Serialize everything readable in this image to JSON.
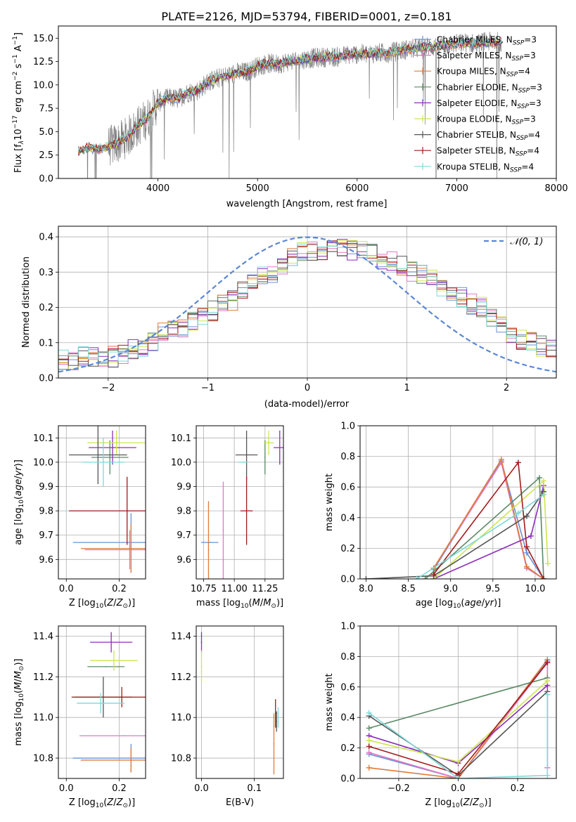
{
  "figure_title": "PLATE=2126, MJD=53794, FIBERID=0001, z=0.181",
  "colors": {
    "Chabrier MILES": "#6a8fd8",
    "Salpeter MILES": "#e377c2",
    "Kroupa MILES": "#e07b39",
    "Chabrier ELODIE": "#5b8a66",
    "Salpeter ELODIE": "#8b2fb8",
    "Kroupa ELODIE": "#cce64d",
    "Chabrier STELIB": "#555555",
    "Salpeter STELIB": "#a31a1a",
    "Kroupa STELIB": "#7fd8d8",
    "gaussian": "#5b87d6",
    "spectrum": "#808080"
  },
  "chart_data": [
    {
      "id": "spectrum",
      "type": "line",
      "title": "PLATE=2126, MJD=53794, FIBERID=0001, z=0.181",
      "xlabel": "wavelength [Angstrom, rest frame]",
      "ylabel": "Flux [f_λ 10^-17 erg cm^-2 s^-1 A^-1]",
      "xlim": [
        3000,
        8000
      ],
      "ylim": [
        0,
        16.3
      ],
      "xticks": [
        "4000",
        "5000",
        "6000",
        "7000",
        "8000"
      ],
      "yticks": [
        "0.0",
        "2.5",
        "5.0",
        "7.5",
        "10.0",
        "12.5",
        "15.0"
      ],
      "legend_position": "top-right",
      "legend": [
        "Chabrier MILES, N_SSP=3",
        "Salpeter MILES, N_SSP=3",
        "Kroupa MILES, N_SSP=4",
        "Chabrier ELODIE, N_SSP=3",
        "Salpeter ELODIE, N_SSP=3",
        "Kroupa ELODIE, N_SSP=3",
        "Chabrier STELIB, N_SSP=4",
        "Salpeter STELIB, N_SSP=4",
        "Kroupa STELIB, N_SSP=4"
      ],
      "model_continuum": {
        "x": [
          3200,
          3300,
          3400,
          3500,
          3600,
          3700,
          3800,
          3900,
          4000,
          4100,
          4200,
          4300,
          4400,
          4500,
          4600,
          4700,
          4800,
          4900,
          5000,
          5100,
          5200,
          5300,
          5400,
          5500,
          5600,
          5700,
          5800,
          5900,
          6000,
          6100,
          6200,
          6300,
          6400,
          6500,
          6600,
          6700,
          6800,
          6900,
          7000,
          7100,
          7200,
          7300,
          7400,
          7500
        ],
        "y": [
          2.9,
          3.3,
          3.1,
          3.4,
          3.8,
          4.5,
          5.6,
          6.5,
          8.1,
          8.6,
          8.5,
          9.2,
          9.4,
          10.3,
          10.7,
          11.0,
          11.3,
          11.4,
          12.0,
          12.3,
          12.2,
          12.5,
          12.6,
          12.8,
          12.9,
          13.0,
          13.0,
          13.2,
          13.3,
          13.3,
          13.4,
          13.4,
          13.6,
          13.8,
          13.9,
          14.1,
          14.1,
          14.3,
          14.4,
          14.5,
          14.4,
          14.6,
          14.6,
          14.7
        ]
      },
      "data_x_range": [
        3200,
        7450
      ]
    },
    {
      "id": "residuals",
      "type": "line",
      "xlabel": "(data-model)/error",
      "ylabel": "Normed distribution",
      "xlim": [
        -2.5,
        2.5
      ],
      "ylim": [
        0,
        0.43
      ],
      "xticks": [
        "-2",
        "-1",
        "0",
        "1",
        "2"
      ],
      "yticks": [
        "0.0",
        "0.1",
        "0.2",
        "0.3",
        "0.4"
      ],
      "legend": [
        "𝒩(0, 1)"
      ],
      "legend_position": "top-right",
      "bin_edges_start": -2.5,
      "bin_width": 0.1,
      "histogram_envelope": [
        0.05,
        0.05,
        0.06,
        0.06,
        0.05,
        0.06,
        0.07,
        0.08,
        0.09,
        0.1,
        0.13,
        0.14,
        0.14,
        0.16,
        0.18,
        0.19,
        0.21,
        0.22,
        0.25,
        0.27,
        0.29,
        0.3,
        0.31,
        0.34,
        0.36,
        0.36,
        0.36,
        0.37,
        0.37,
        0.36,
        0.37,
        0.35,
        0.33,
        0.33,
        0.32,
        0.3,
        0.29,
        0.28,
        0.26,
        0.24,
        0.23,
        0.21,
        0.2,
        0.17,
        0.15,
        0.13,
        0.11,
        0.1,
        0.09,
        0.08
      ]
    },
    {
      "id": "age_vs_Z",
      "type": "scatter",
      "xlabel": "Z [log10(Z/Z⊙)]",
      "ylabel": "age  [log10(age/yr)]",
      "xlim": [
        -0.03,
        0.3
      ],
      "ylim": [
        9.52,
        10.15
      ],
      "xticks": [
        "0.0",
        "0.2"
      ],
      "yticks": [
        "9.6",
        "9.7",
        "9.8",
        "9.9",
        "10.0",
        "10.1"
      ],
      "points": [
        {
          "model": "Chabrier MILES",
          "x": 0.245,
          "y": 9.67,
          "xerr": 0.22,
          "yerr": 0.12
        },
        {
          "model": "Salpeter MILES",
          "x": 0.24,
          "y": 9.64,
          "xerr": 0.17,
          "yerr": 0.08
        },
        {
          "model": "Kroupa MILES",
          "x": 0.245,
          "y": 9.645,
          "xerr": 0.19,
          "yerr": 0.1
        },
        {
          "model": "Chabrier ELODIE",
          "x": 0.165,
          "y": 10.02,
          "xerr": 0.07,
          "yerr": 0.07
        },
        {
          "model": "Salpeter ELODIE",
          "x": 0.175,
          "y": 10.06,
          "xerr": 0.09,
          "yerr": 0.07
        },
        {
          "model": "Kroupa ELODIE",
          "x": 0.19,
          "y": 10.08,
          "xerr": 0.11,
          "yerr": 0.05
        },
        {
          "model": "Chabrier STELIB",
          "x": 0.12,
          "y": 10.03,
          "xerr": 0.11,
          "yerr": 0.12
        },
        {
          "model": "Salpeter STELIB",
          "x": 0.23,
          "y": 9.8,
          "xerr": 0.22,
          "yerr": 0.14
        },
        {
          "model": "Kroupa STELIB",
          "x": 0.14,
          "y": 10.0,
          "xerr": 0.08,
          "yerr": 0.1
        }
      ]
    },
    {
      "id": "age_vs_mass",
      "type": "scatter",
      "xlabel": "mass [log10(M/M⊙)]",
      "xlim": [
        10.69,
        11.4
      ],
      "ylim": [
        9.52,
        10.15
      ],
      "xticks": [
        "10.75",
        "11.00",
        "11.25"
      ],
      "yticks": [
        "9.6",
        "9.7",
        "9.8",
        "9.9",
        "10.0",
        "10.1"
      ],
      "points": [
        {
          "model": "Chabrier MILES",
          "x": 10.8,
          "y": 9.67,
          "xerr": 0.07,
          "yerr": 0.0
        },
        {
          "model": "Salpeter MILES",
          "x": 10.91,
          "y": 9.72,
          "xerr": 0.0,
          "yerr": 0.2
        },
        {
          "model": "Kroupa MILES",
          "x": 10.79,
          "y": 9.64,
          "xerr": 0.0,
          "yerr": 0.2
        },
        {
          "model": "Chabrier ELODIE",
          "x": 11.25,
          "y": 10.02,
          "xerr": 0.0,
          "yerr": 0.07
        },
        {
          "model": "Salpeter ELODIE",
          "x": 11.37,
          "y": 10.06,
          "xerr": 0.05,
          "yerr": 0.07
        },
        {
          "model": "Kroupa ELODIE",
          "x": 11.28,
          "y": 10.08,
          "xerr": 0.04,
          "yerr": 0.05
        },
        {
          "model": "Chabrier STELIB",
          "x": 11.1,
          "y": 10.03,
          "xerr": 0.09,
          "yerr": 0.1
        },
        {
          "model": "Salpeter STELIB",
          "x": 11.1,
          "y": 9.8,
          "xerr": 0.05,
          "yerr": 0.14
        },
        {
          "model": "Kroupa STELIB",
          "x": 11.07,
          "y": 10.0,
          "xerr": 0.04,
          "yerr": 0.0
        }
      ]
    },
    {
      "id": "massweight_vs_age",
      "type": "line",
      "xlabel": "age  [log10(age/yr)]",
      "ylabel": "mass weight",
      "xlim": [
        7.93,
        10.25
      ],
      "ylim": [
        0,
        1.0
      ],
      "xticks": [
        "8.0",
        "8.5",
        "9.0",
        "9.5",
        "10.0"
      ],
      "yticks": [
        "0.0",
        "0.2",
        "0.4",
        "0.6",
        "0.8",
        "1.0"
      ],
      "series": [
        {
          "model": "Chabrier MILES",
          "x": [
            8.8,
            9.6,
            9.9,
            10.1
          ],
          "y": [
            0.06,
            0.77,
            0.17,
            0.0
          ]
        },
        {
          "model": "Salpeter MILES",
          "x": [
            8.8,
            9.6,
            9.9,
            10.1
          ],
          "y": [
            0.07,
            0.76,
            0.07,
            0.0
          ]
        },
        {
          "model": "Kroupa MILES",
          "x": [
            8.8,
            9.6,
            9.9,
            10.1
          ],
          "y": [
            0.07,
            0.78,
            0.08,
            0.0
          ]
        },
        {
          "model": "Chabrier ELODIE",
          "x": [
            8.7,
            10.05,
            10.1
          ],
          "y": [
            0.0,
            0.66,
            0.0
          ]
        },
        {
          "model": "Salpeter ELODIE",
          "x": [
            8.8,
            9.95,
            10.1
          ],
          "y": [
            0.0,
            0.28,
            0.61
          ]
        },
        {
          "model": "Kroupa ELODIE",
          "x": [
            8.8,
            10.1,
            10.15
          ],
          "y": [
            0.0,
            0.64,
            0.1
          ]
        },
        {
          "model": "Chabrier STELIB",
          "x": [
            8.0,
            8.8,
            9.9,
            10.1
          ],
          "y": [
            0.0,
            0.02,
            0.41,
            0.57
          ]
        },
        {
          "model": "Salpeter STELIB",
          "x": [
            8.8,
            9.8,
            9.9,
            10.1
          ],
          "y": [
            0.03,
            0.76,
            0.21,
            0.0
          ]
        },
        {
          "model": "Kroupa STELIB",
          "x": [
            8.6,
            9.8,
            10.1
          ],
          "y": [
            0.0,
            0.43,
            0.55
          ]
        }
      ]
    },
    {
      "id": "mass_vs_Z",
      "type": "scatter",
      "xlabel": "Z [log10(Z/Z⊙)]",
      "ylabel": "mass [log10(M/M⊙)]",
      "xlim": [
        -0.03,
        0.3
      ],
      "ylim": [
        10.7,
        11.45
      ],
      "xticks": [
        "0.0",
        "0.2"
      ],
      "yticks": [
        "10.8",
        "11.0",
        "11.2",
        "11.4"
      ],
      "points": [
        {
          "model": "Chabrier MILES",
          "x": 0.245,
          "y": 10.8,
          "xerr": 0.22,
          "yerr": 0.07
        },
        {
          "model": "Salpeter MILES",
          "x": 0.22,
          "y": 10.91,
          "xerr": 0.17,
          "yerr": 0.0
        },
        {
          "model": "Kroupa MILES",
          "x": 0.245,
          "y": 10.79,
          "xerr": 0.19,
          "yerr": 0.06
        },
        {
          "model": "Chabrier ELODIE",
          "x": 0.15,
          "y": 11.25,
          "xerr": 0.07,
          "yerr": 0.0
        },
        {
          "model": "Salpeter ELODIE",
          "x": 0.17,
          "y": 11.37,
          "xerr": 0.08,
          "yerr": 0.05
        },
        {
          "model": "Kroupa ELODIE",
          "x": 0.18,
          "y": 11.28,
          "xerr": 0.09,
          "yerr": 0.05
        },
        {
          "model": "Chabrier STELIB",
          "x": 0.14,
          "y": 11.1,
          "xerr": 0.11,
          "yerr": 0.1
        },
        {
          "model": "Salpeter STELIB",
          "x": 0.21,
          "y": 11.1,
          "xerr": 0.19,
          "yerr": 0.05
        },
        {
          "model": "Kroupa STELIB",
          "x": 0.13,
          "y": 11.07,
          "xerr": 0.09,
          "yerr": 0.05
        }
      ]
    },
    {
      "id": "mass_vs_ebv",
      "type": "scatter",
      "xlabel": "E(B-V)",
      "xlim": [
        -0.01,
        0.155
      ],
      "ylim": [
        10.7,
        11.45
      ],
      "xticks": [
        "0.0",
        "0.1"
      ],
      "yticks": [
        "10.8",
        "11.0",
        "11.2",
        "11.4"
      ],
      "points": [
        {
          "model": "Salpeter ELODIE",
          "x": 0.0,
          "y": 11.37,
          "xerr": 0.0,
          "yerr": 0.05
        },
        {
          "model": "Kroupa ELODIE",
          "x": 0.0,
          "y": 11.25,
          "xerr": 0.0,
          "yerr": 0.08
        },
        {
          "model": "Kroupa MILES",
          "x": 0.137,
          "y": 10.87,
          "xerr": 0.0,
          "yerr": 0.15
        },
        {
          "model": "Salpeter STELIB",
          "x": 0.14,
          "y": 11.02,
          "xerr": 0.0,
          "yerr": 0.07
        },
        {
          "model": "Chabrier STELIB",
          "x": 0.142,
          "y": 10.98,
          "xerr": 0.0,
          "yerr": 0.05
        },
        {
          "model": "Kroupa STELIB",
          "x": 0.145,
          "y": 11.0,
          "xerr": 0.0,
          "yerr": 0.05
        }
      ]
    },
    {
      "id": "massweight_vs_Z",
      "type": "line",
      "xlabel": "Z [log10(Z/Z⊙)]",
      "ylabel": "mass weight",
      "xlim": [
        -0.33,
        0.33
      ],
      "ylim": [
        0,
        1.0
      ],
      "xticks": [
        "-0.2",
        "0.0",
        "0.2"
      ],
      "yticks": [
        "0.0",
        "0.2",
        "0.4",
        "0.6",
        "0.8",
        "1.0"
      ],
      "series": [
        {
          "model": "Chabrier MILES",
          "x": [
            -0.3,
            0.0,
            0.3,
            0.3
          ],
          "y": [
            0.16,
            0.0,
            0.77,
            0.07
          ]
        },
        {
          "model": "Salpeter MILES",
          "x": [
            -0.3,
            0.0,
            0.3,
            0.3
          ],
          "y": [
            0.17,
            0.0,
            0.76,
            0.07
          ]
        },
        {
          "model": "Kroupa MILES",
          "x": [
            -0.3,
            0.0,
            0.3
          ],
          "y": [
            0.07,
            0.0,
            0.78
          ]
        },
        {
          "model": "Chabrier ELODIE",
          "x": [
            -0.3,
            0.3
          ],
          "y": [
            0.33,
            0.66
          ]
        },
        {
          "model": "Salpeter ELODIE",
          "x": [
            -0.3,
            0.0,
            0.3
          ],
          "y": [
            0.28,
            0.1,
            0.61
          ]
        },
        {
          "model": "Kroupa ELODIE",
          "x": [
            -0.3,
            0.0,
            0.3
          ],
          "y": [
            0.25,
            0.11,
            0.64
          ]
        },
        {
          "model": "Chabrier STELIB",
          "x": [
            -0.3,
            0.0,
            0.3
          ],
          "y": [
            0.41,
            0.02,
            0.57
          ]
        },
        {
          "model": "Salpeter STELIB",
          "x": [
            -0.3,
            0.0,
            0.3
          ],
          "y": [
            0.21,
            0.03,
            0.76
          ]
        },
        {
          "model": "Kroupa STELIB",
          "x": [
            -0.3,
            0.0,
            0.3,
            0.3
          ],
          "y": [
            0.43,
            0.0,
            0.02,
            0.55
          ]
        }
      ]
    }
  ]
}
